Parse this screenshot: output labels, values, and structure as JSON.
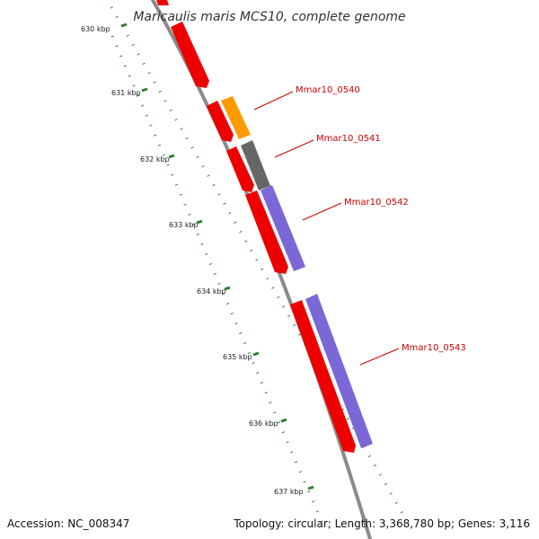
{
  "title": "Maricaulis maris MCS10, complete genome",
  "footer": {
    "accession": "Accession: NC_008347",
    "topology": "Topology: circular; Length: 3,368,780 bp; Genes: 3,116"
  },
  "ticks": [
    "630 kbp",
    "631 kbp",
    "632 kbp",
    "633 kbp",
    "634 kbp",
    "635 kbp",
    "636 kbp",
    "637 kbp"
  ],
  "gene_labels": [
    "Mmar10_0540",
    "Mmar10_0541",
    "Mmar10_0542",
    "Mmar10_0543"
  ],
  "colors": {
    "backbone": "#8a8a8a",
    "tick_major": "#2e7d32",
    "tick_minor": "#2e7d32",
    "cds_red": "#ee0000",
    "cds_orange": "#ff9a00",
    "cds_gray": "#666666",
    "cds_purple": "#7b68d6",
    "label": "#cc0000"
  }
}
